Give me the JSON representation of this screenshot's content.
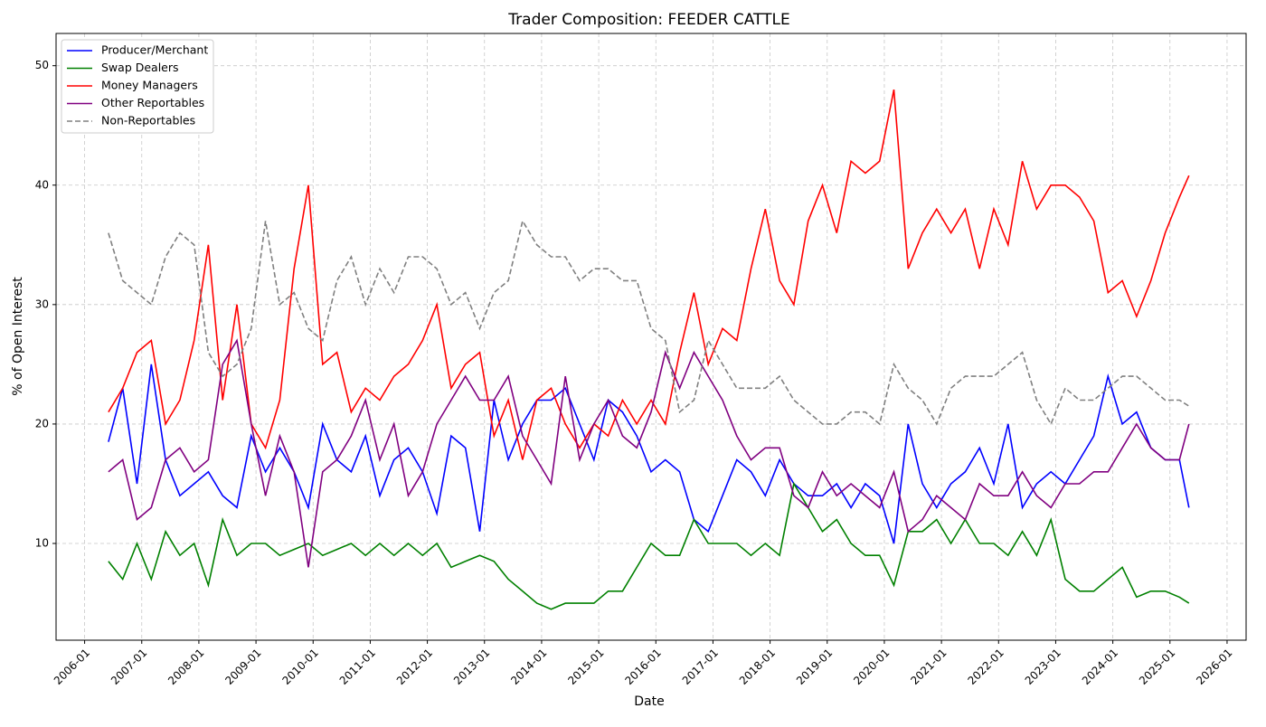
{
  "chart_data": {
    "type": "line",
    "title": "Trader Composition: FEEDER CATTLE",
    "x_label": "Date",
    "y_label": "% of Open Interest",
    "x": [
      "2006-06",
      "2006-09",
      "2006-12",
      "2007-03",
      "2007-06",
      "2007-09",
      "2007-12",
      "2008-03",
      "2008-06",
      "2008-09",
      "2008-12",
      "2009-03",
      "2009-06",
      "2009-09",
      "2009-12",
      "2010-03",
      "2010-06",
      "2010-09",
      "2010-12",
      "2011-03",
      "2011-06",
      "2011-09",
      "2011-12",
      "2012-03",
      "2012-06",
      "2012-09",
      "2012-12",
      "2013-03",
      "2013-06",
      "2013-09",
      "2013-12",
      "2014-03",
      "2014-06",
      "2014-09",
      "2014-12",
      "2015-03",
      "2015-06",
      "2015-09",
      "2015-12",
      "2016-03",
      "2016-06",
      "2016-09",
      "2016-12",
      "2017-03",
      "2017-06",
      "2017-09",
      "2017-12",
      "2018-03",
      "2018-06",
      "2018-09",
      "2018-12",
      "2019-03",
      "2019-06",
      "2019-09",
      "2019-12",
      "2020-03",
      "2020-06",
      "2020-09",
      "2020-12",
      "2021-03",
      "2021-06",
      "2021-09",
      "2021-12",
      "2022-03",
      "2022-06",
      "2022-09",
      "2022-12",
      "2023-03",
      "2023-06",
      "2023-09",
      "2023-12",
      "2024-03",
      "2024-06",
      "2024-09",
      "2024-12",
      "2025-03",
      "2025-05"
    ],
    "series": [
      {
        "name": "Producer/Merchant",
        "color": "#0000ff",
        "linestyle": "solid",
        "values": [
          18.5,
          23,
          15,
          25,
          17,
          14,
          15,
          16,
          14,
          13,
          19,
          16,
          18,
          16,
          13,
          20,
          17,
          16,
          19,
          14,
          17,
          18,
          16,
          12.5,
          19,
          18,
          11,
          22,
          17,
          20,
          22,
          22,
          23,
          20,
          17,
          22,
          21,
          19,
          16,
          17,
          16,
          12,
          11,
          14,
          17,
          16,
          14,
          17,
          15,
          14,
          14,
          15,
          13,
          15,
          14,
          10,
          20,
          15,
          13,
          15,
          16,
          18,
          15,
          20,
          13,
          15,
          16,
          15,
          17,
          19,
          24,
          20,
          21,
          18,
          17,
          17,
          13
        ]
      },
      {
        "name": "Swap Dealers",
        "color": "#008000",
        "linestyle": "solid",
        "values": [
          8.5,
          7,
          10,
          7,
          11,
          9,
          10,
          6.5,
          12,
          9,
          10,
          10,
          9,
          9.5,
          10,
          9,
          9.5,
          10,
          9,
          10,
          9,
          10,
          9,
          10,
          8,
          8.5,
          9,
          8.5,
          7,
          6,
          5,
          4.5,
          5,
          5,
          5,
          6,
          6,
          8,
          10,
          9,
          9,
          12,
          10,
          10,
          10,
          9,
          10,
          9,
          15,
          13,
          11,
          12,
          10,
          9,
          9,
          6.5,
          11,
          11,
          12,
          10,
          12,
          10,
          10,
          9,
          11,
          9,
          12,
          7,
          6,
          6,
          7,
          8,
          5.5,
          6,
          6,
          5.5,
          5
        ]
      },
      {
        "name": "Money Managers",
        "color": "#ff0000",
        "linestyle": "solid",
        "values": [
          21,
          23,
          26,
          27,
          20,
          22,
          27,
          35,
          22,
          30,
          20,
          18,
          22,
          33,
          40,
          25,
          26,
          21,
          23,
          22,
          24,
          25,
          27,
          30,
          23,
          25,
          26,
          19,
          22,
          17,
          22,
          23,
          20,
          18,
          20,
          19,
          22,
          20,
          22,
          20,
          26,
          31,
          25,
          28,
          27,
          33,
          38,
          32,
          30,
          37,
          40,
          36,
          42,
          41,
          42,
          48,
          33,
          36,
          38,
          36,
          38,
          33,
          38,
          35,
          42,
          38,
          40,
          40,
          39,
          37,
          31,
          32,
          29,
          32,
          36,
          39,
          40.8
        ]
      },
      {
        "name": "Other Reportables",
        "color": "#800080",
        "linestyle": "solid",
        "values": [
          16,
          17,
          12,
          13,
          17,
          18,
          16,
          17,
          25,
          27,
          20,
          14,
          19,
          16,
          8,
          16,
          17,
          19,
          22,
          17,
          20,
          14,
          16,
          20,
          22,
          24,
          22,
          22,
          24,
          19,
          17,
          15,
          24,
          17,
          20,
          22,
          19,
          18,
          21,
          26,
          23,
          26,
          24,
          22,
          19,
          17,
          18,
          18,
          14,
          13,
          16,
          14,
          15,
          14,
          13,
          16,
          11,
          12,
          14,
          13,
          12,
          15,
          14,
          14,
          16,
          14,
          13,
          15,
          15,
          16,
          16,
          18,
          20,
          18,
          17,
          17,
          20
        ]
      },
      {
        "name": "Non-Reportables",
        "color": "#808080",
        "linestyle": "dashed",
        "values": [
          36,
          32,
          31,
          30,
          34,
          36,
          35,
          26,
          24,
          25,
          28,
          37,
          30,
          31,
          28,
          27,
          32,
          34,
          30,
          33,
          31,
          34,
          34,
          33,
          30,
          31,
          28,
          31,
          32,
          37,
          35,
          34,
          34,
          32,
          33,
          33,
          32,
          32,
          28,
          27,
          21,
          22,
          27,
          25,
          23,
          23,
          23,
          24,
          22,
          21,
          20,
          20,
          21,
          21,
          20,
          25,
          23,
          22,
          20,
          23,
          24,
          24,
          24,
          25,
          26,
          22,
          20,
          23,
          22,
          22,
          23,
          24,
          24,
          23,
          22,
          22,
          21.5
        ]
      }
    ],
    "xlim": [
      "2005-07",
      "2026-05"
    ],
    "xticks": [
      "2006-01",
      "2007-01",
      "2008-01",
      "2009-01",
      "2010-01",
      "2011-01",
      "2012-01",
      "2013-01",
      "2014-01",
      "2015-01",
      "2016-01",
      "2017-01",
      "2018-01",
      "2019-01",
      "2020-01",
      "2021-01",
      "2022-01",
      "2023-01",
      "2024-01",
      "2025-01",
      "2026-01"
    ],
    "ylim": [
      1.9,
      52.7
    ],
    "yticks": [
      10,
      20,
      30,
      40,
      50
    ],
    "grid": true,
    "legend": "upper left"
  }
}
